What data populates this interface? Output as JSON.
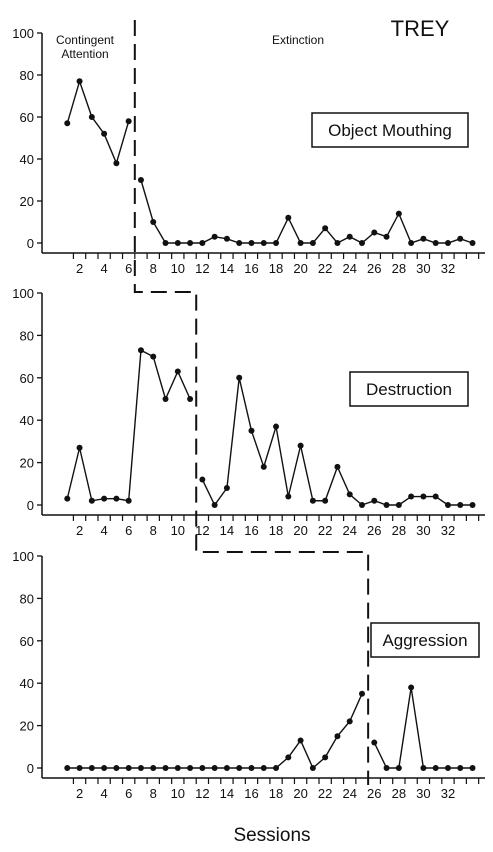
{
  "chart_data": {
    "type": "line",
    "subject": "TREY",
    "xlabel": "Sessions",
    "phase_labels": [
      "Contingent\nAttention",
      "Extinction"
    ],
    "x_tick_labels": [
      "2",
      "4",
      "6",
      "8",
      "10",
      "12",
      "14",
      "16",
      "18",
      "20",
      "22",
      "24",
      "26",
      "28",
      "30",
      "32"
    ],
    "ylim": [
      0,
      100
    ],
    "y_ticks": [
      0,
      20,
      40,
      60,
      80,
      100
    ],
    "xlim": [
      0,
      34
    ],
    "panels": [
      {
        "label": "Object Mouthing",
        "phase_change_after": 6.5,
        "baseline": {
          "x": [
            1,
            2,
            3,
            4,
            5,
            6
          ],
          "y": [
            57,
            77,
            60,
            52,
            38,
            58
          ]
        },
        "treatment": {
          "x": [
            7,
            8,
            9,
            10,
            11,
            12,
            13,
            14,
            15,
            16,
            17,
            18,
            19,
            20,
            21,
            22,
            23,
            24,
            25,
            26,
            27,
            28,
            29,
            30,
            31,
            32,
            33,
            34
          ],
          "y": [
            30,
            10,
            0,
            0,
            0,
            0,
            3,
            2,
            0,
            0,
            0,
            0,
            12,
            0,
            0,
            7,
            0,
            3,
            0,
            5,
            3,
            14,
            0,
            2,
            0,
            0,
            2,
            0
          ]
        }
      },
      {
        "label": "Destruction",
        "phase_change_after": 11.5,
        "baseline": {
          "x": [
            1,
            2,
            3,
            4,
            5,
            6,
            7,
            8,
            9,
            10,
            11
          ],
          "y": [
            3,
            27,
            2,
            3,
            3,
            2,
            73,
            70,
            50,
            63,
            50
          ]
        },
        "treatment": {
          "x": [
            12,
            13,
            14,
            15,
            16,
            17,
            18,
            19,
            20,
            21,
            22,
            23,
            24,
            25,
            26,
            27,
            28,
            29,
            30,
            31,
            32,
            33,
            34
          ],
          "y": [
            12,
            0,
            8,
            60,
            35,
            18,
            37,
            4,
            28,
            2,
            2,
            18,
            5,
            0,
            2,
            0,
            0,
            4,
            4,
            4,
            0,
            0,
            0
          ]
        }
      },
      {
        "label": "Aggression",
        "phase_change_after": 25.5,
        "baseline": {
          "x": [
            1,
            2,
            3,
            4,
            5,
            6,
            7,
            8,
            9,
            10,
            11,
            12,
            13,
            14,
            15,
            16,
            17,
            18,
            19,
            20,
            21,
            22,
            23,
            24,
            25
          ],
          "y": [
            0,
            0,
            0,
            0,
            0,
            0,
            0,
            0,
            0,
            0,
            0,
            0,
            0,
            0,
            0,
            0,
            0,
            0,
            5,
            13,
            0,
            5,
            15,
            22,
            35
          ]
        },
        "treatment": {
          "x": [
            26,
            27,
            28,
            29,
            30,
            31,
            32,
            33,
            34
          ],
          "y": [
            12,
            0,
            0,
            38,
            0,
            0,
            0,
            0,
            0
          ]
        }
      }
    ]
  }
}
